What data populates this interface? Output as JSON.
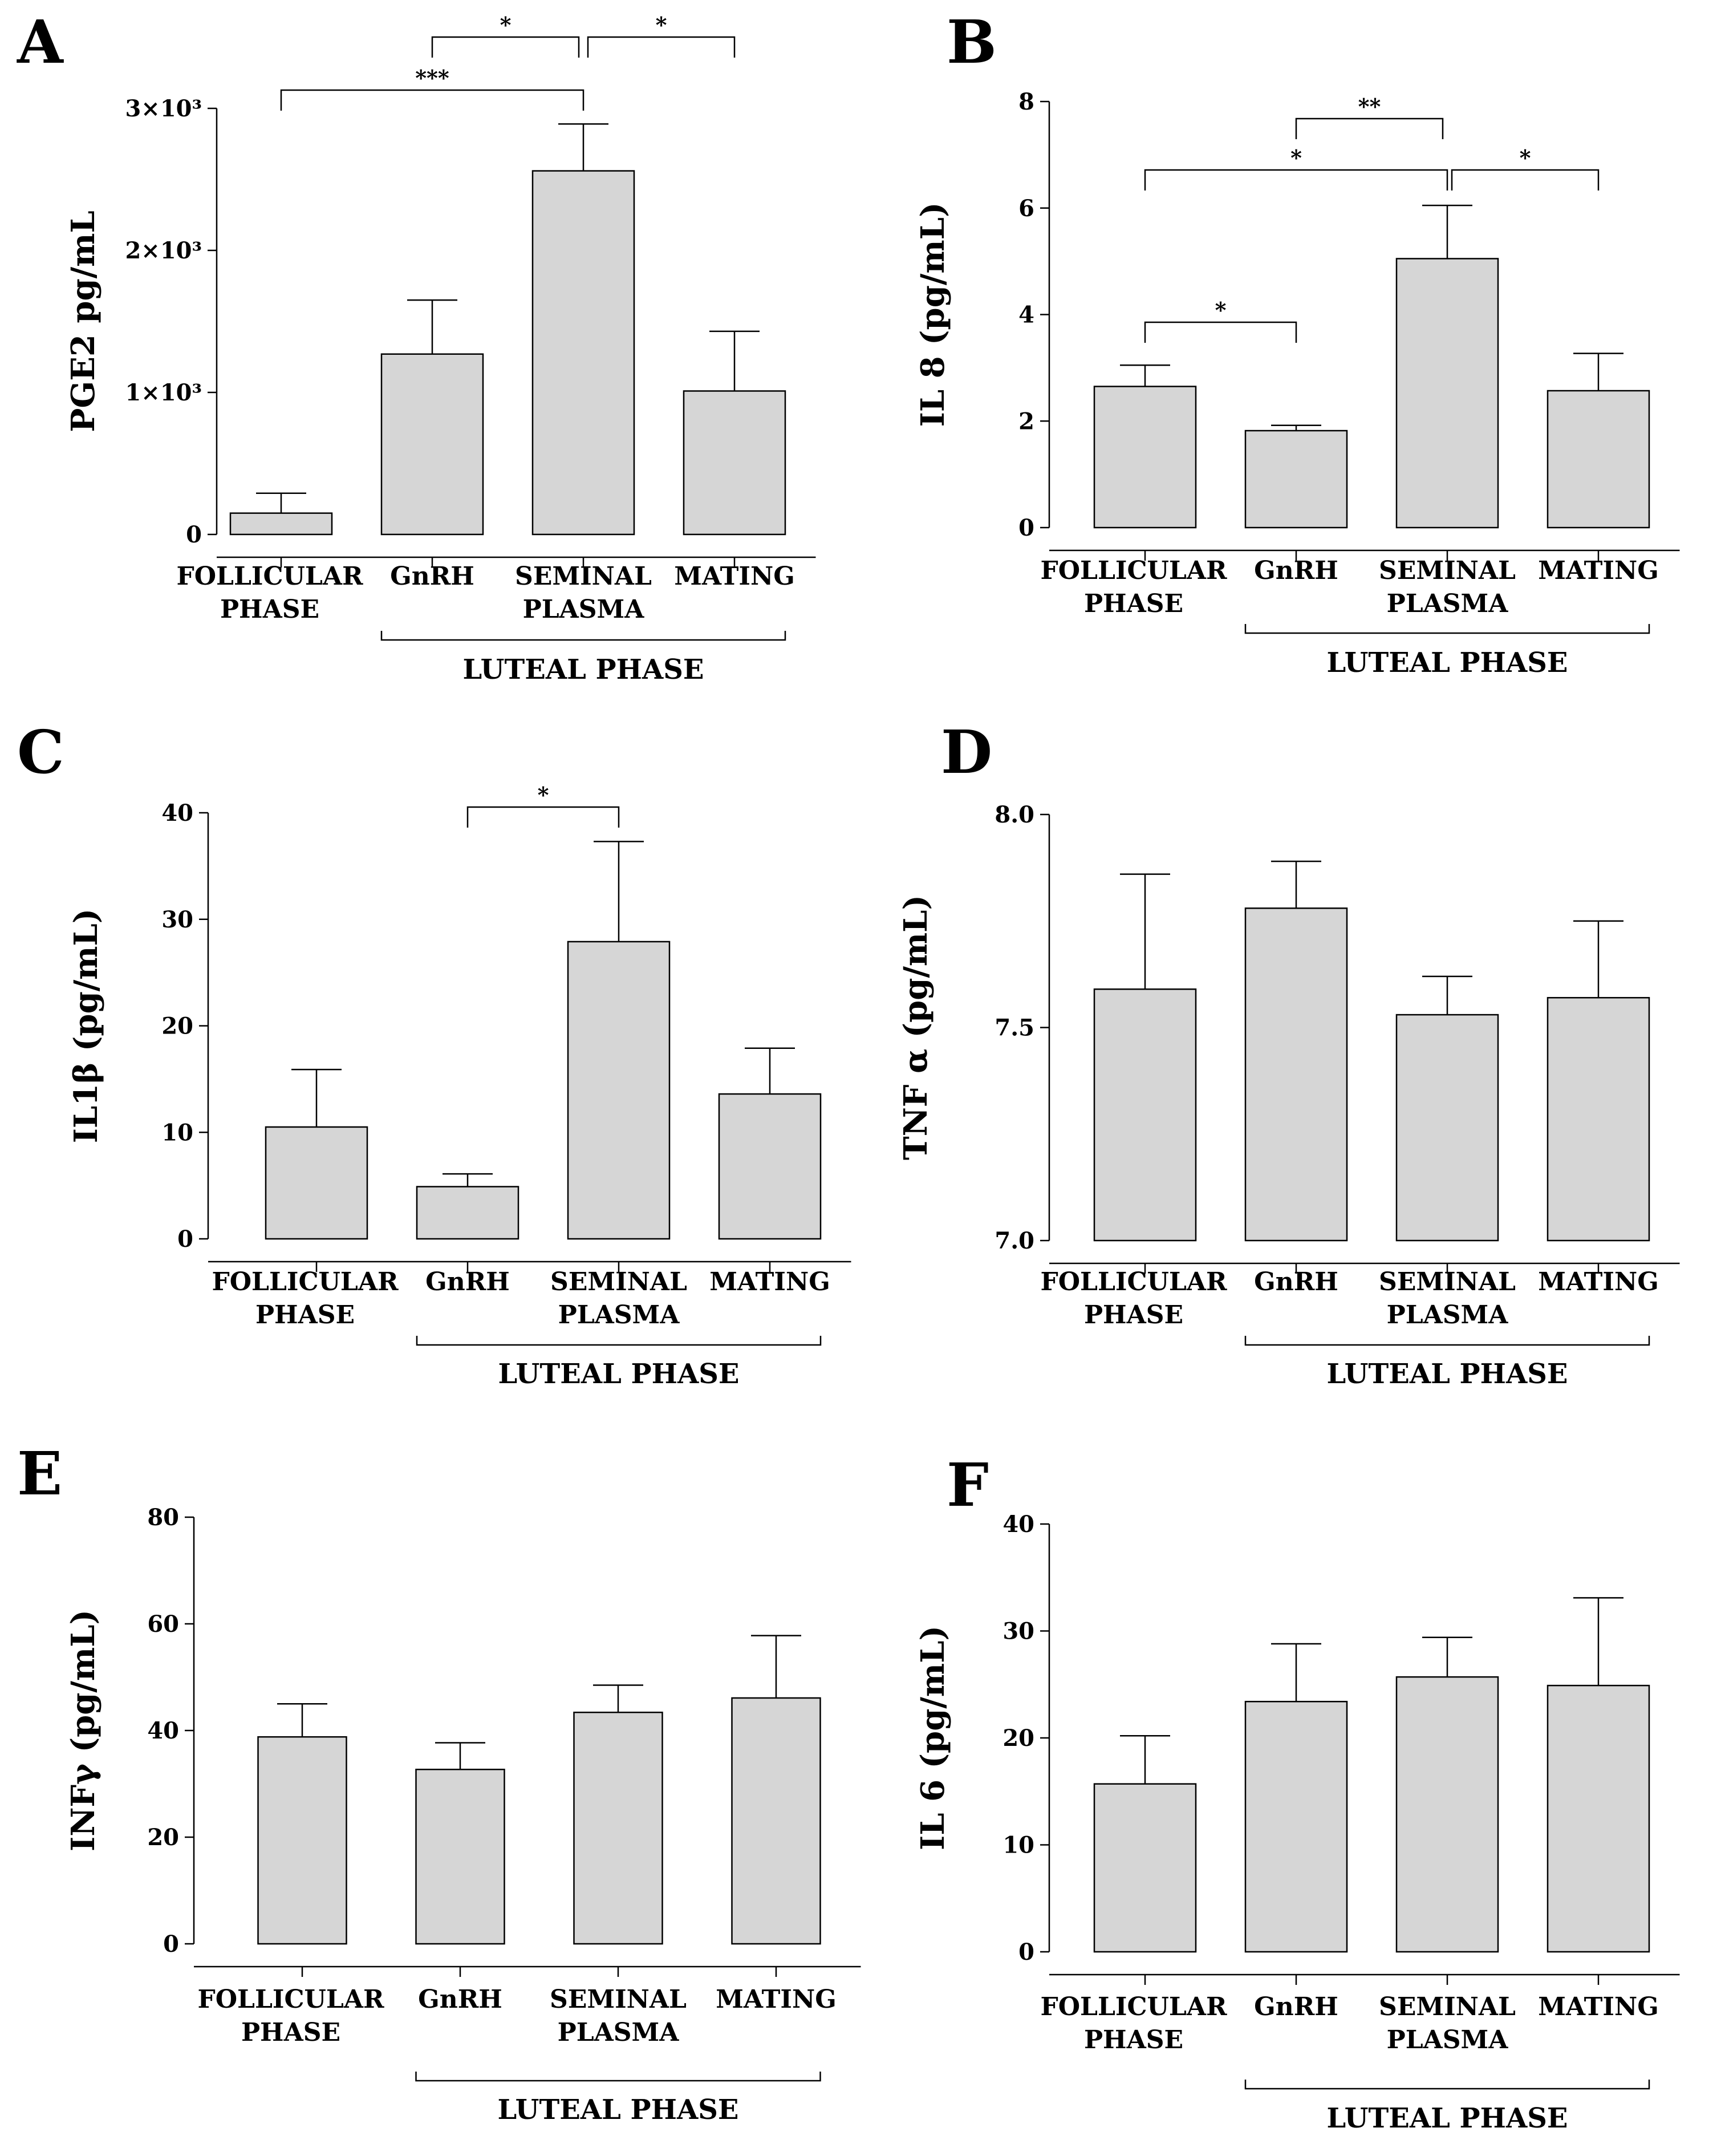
{
  "chart_data": [
    {
      "panel": "A",
      "type": "bar",
      "ylabel": "PGE2 pg/mL",
      "categories": [
        [
          "FOLLICULAR",
          "PHASE"
        ],
        [
          "GnRH"
        ],
        [
          "SEMINAL",
          "PLASMA"
        ],
        [
          "MATING"
        ]
      ],
      "values": [
        150,
        1270,
        2560,
        1010
      ],
      "errors": [
        140,
        380,
        330,
        420
      ],
      "ylim": [
        0,
        3000
      ],
      "yticks": [
        0,
        1000,
        2000,
        3000
      ],
      "yticklabels": [
        "0",
        "1×10³",
        "2×10³",
        "3×10³"
      ],
      "group_label": "LUTEAL PHASE",
      "group_span": [
        1,
        3
      ],
      "brackets": [
        {
          "from": 1,
          "to": 2,
          "label": "*"
        },
        {
          "from": 2,
          "to": 3,
          "label": "*"
        },
        {
          "from": 0,
          "to": 2,
          "label": "***"
        }
      ]
    },
    {
      "panel": "B",
      "type": "bar",
      "ylabel": "IL 8  (pg/mL)",
      "categories": [
        [
          "FOLLICULAR",
          "PHASE"
        ],
        [
          "GnRH"
        ],
        [
          "SEMINAL",
          "PLASMA"
        ],
        [
          "MATING"
        ]
      ],
      "values": [
        2.65,
        1.82,
        5.05,
        2.57
      ],
      "errors": [
        0.4,
        0.1,
        1.0,
        0.7
      ],
      "ylim": [
        0,
        8
      ],
      "yticks": [
        0,
        2,
        4,
        6,
        8
      ],
      "yticklabels": [
        "0",
        "2",
        "4",
        "6",
        "8"
      ],
      "group_label": "LUTEAL PHASE",
      "group_span": [
        1,
        3
      ],
      "brackets": [
        {
          "from": 1,
          "to": 2,
          "label": "**"
        },
        {
          "from": 0,
          "to": 2,
          "label": "*"
        },
        {
          "from": 2,
          "to": 3,
          "label": "*"
        },
        {
          "from": 0,
          "to": 1,
          "label": "*"
        }
      ]
    },
    {
      "panel": "C",
      "type": "bar",
      "ylabel": "IL1β (pg/mL)",
      "categories": [
        [
          "FOLLICULAR",
          "PHASE"
        ],
        [
          "GnRH"
        ],
        [
          "SEMINAL",
          "PLASMA"
        ],
        [
          "MATING"
        ]
      ],
      "values": [
        10.5,
        4.9,
        27.9,
        13.6
      ],
      "errors": [
        5.4,
        1.2,
        9.4,
        4.3
      ],
      "ylim": [
        0,
        40
      ],
      "yticks": [
        0,
        10,
        20,
        30,
        40
      ],
      "yticklabels": [
        "0",
        "10",
        "20",
        "30",
        "40"
      ],
      "group_label": "LUTEAL PHASE",
      "group_span": [
        1,
        3
      ],
      "brackets": [
        {
          "from": 1,
          "to": 2,
          "label": "*"
        }
      ]
    },
    {
      "panel": "D",
      "type": "bar",
      "ylabel": "TNF α (pg/mL)",
      "categories": [
        [
          "FOLLICULAR",
          "PHASE"
        ],
        [
          "GnRH"
        ],
        [
          "SEMINAL",
          "PLASMA"
        ],
        [
          "MATING"
        ]
      ],
      "values": [
        7.59,
        7.78,
        7.53,
        7.57
      ],
      "errors": [
        0.27,
        0.11,
        0.09,
        0.18
      ],
      "ylim": [
        7.0,
        8.0
      ],
      "yticks": [
        7.0,
        7.5,
        8.0
      ],
      "yticklabels": [
        "7.0",
        "7.5",
        "8.0"
      ],
      "group_label": "LUTEAL PHASE",
      "group_span": [
        1,
        3
      ],
      "brackets": []
    },
    {
      "panel": "E",
      "type": "bar",
      "ylabel": "INFγ (pg/mL)",
      "categories": [
        [
          "FOLLICULAR",
          "PHASE"
        ],
        [
          "GnRH"
        ],
        [
          "SEMINAL",
          "PLASMA"
        ],
        [
          "MATING"
        ]
      ],
      "values": [
        38.8,
        32.7,
        43.4,
        46.1
      ],
      "errors": [
        6.2,
        5.0,
        5.1,
        11.7
      ],
      "ylim": [
        0,
        80
      ],
      "yticks": [
        0,
        20,
        40,
        60,
        80
      ],
      "yticklabels": [
        "0",
        "20",
        "40",
        "60",
        "80"
      ],
      "group_label": "LUTEAL PHASE",
      "group_span": [
        1,
        3
      ],
      "brackets": []
    },
    {
      "panel": "F",
      "type": "bar",
      "ylabel": "IL 6 (pg/mL)",
      "categories": [
        [
          "FOLLICULAR",
          "PHASE"
        ],
        [
          "GnRH"
        ],
        [
          "SEMINAL",
          "PLASMA"
        ],
        [
          "MATING"
        ]
      ],
      "values": [
        15.7,
        23.4,
        25.7,
        24.9
      ],
      "errors": [
        4.5,
        5.4,
        3.7,
        8.2
      ],
      "ylim": [
        0,
        40
      ],
      "yticks": [
        0,
        10,
        20,
        30,
        40
      ],
      "yticklabels": [
        "0",
        "10",
        "20",
        "30",
        "40"
      ],
      "group_label": "LUTEAL PHASE",
      "group_span": [
        1,
        3
      ],
      "brackets": []
    }
  ]
}
